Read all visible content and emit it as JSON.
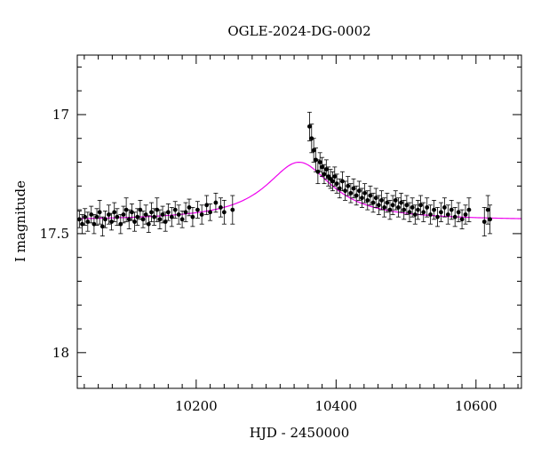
{
  "chart_data": {
    "type": "scatter",
    "title": "OGLE-2024-DG-0002",
    "xlabel": "HJD - 2450000",
    "ylabel": "I magnitude",
    "xlim": [
      10030,
      10665
    ],
    "ylim": [
      18.15,
      16.75
    ],
    "y_inverted": true,
    "x_major_ticks": [
      10200,
      10400,
      10600
    ],
    "x_minor_step": 20,
    "y_major_ticks": [
      17,
      17.5,
      18
    ],
    "y_minor_step": 0.1,
    "x_tick_labels": [
      "10200",
      "10400",
      "10600"
    ],
    "y_tick_labels": [
      "17",
      "17.5",
      "18"
    ],
    "point_color": "#000000",
    "model_color": "#ee00ee",
    "model": {
      "baseline": 17.445,
      "peak_x": 10347,
      "amplitude": 0.245,
      "width": 58
    },
    "points": [
      {
        "x": 10033,
        "y": 17.44,
        "err": 0.035
      },
      {
        "x": 10037,
        "y": 17.46,
        "err": 0.04
      },
      {
        "x": 10041,
        "y": 17.43,
        "err": 0.035
      },
      {
        "x": 10045,
        "y": 17.45,
        "err": 0.04
      },
      {
        "x": 10050,
        "y": 17.42,
        "err": 0.035
      },
      {
        "x": 10054,
        "y": 17.46,
        "err": 0.04
      },
      {
        "x": 10058,
        "y": 17.43,
        "err": 0.035
      },
      {
        "x": 10062,
        "y": 17.41,
        "err": 0.05
      },
      {
        "x": 10066,
        "y": 17.47,
        "err": 0.04
      },
      {
        "x": 10070,
        "y": 17.44,
        "err": 0.035
      },
      {
        "x": 10075,
        "y": 17.42,
        "err": 0.04
      },
      {
        "x": 10079,
        "y": 17.45,
        "err": 0.035
      },
      {
        "x": 10083,
        "y": 17.41,
        "err": 0.04
      },
      {
        "x": 10087,
        "y": 17.43,
        "err": 0.035
      },
      {
        "x": 10092,
        "y": 17.46,
        "err": 0.04
      },
      {
        "x": 10096,
        "y": 17.42,
        "err": 0.035
      },
      {
        "x": 10100,
        "y": 17.4,
        "err": 0.05
      },
      {
        "x": 10104,
        "y": 17.44,
        "err": 0.04
      },
      {
        "x": 10108,
        "y": 17.41,
        "err": 0.035
      },
      {
        "x": 10112,
        "y": 17.45,
        "err": 0.04
      },
      {
        "x": 10116,
        "y": 17.43,
        "err": 0.035
      },
      {
        "x": 10120,
        "y": 17.4,
        "err": 0.04
      },
      {
        "x": 10124,
        "y": 17.44,
        "err": 0.035
      },
      {
        "x": 10128,
        "y": 17.42,
        "err": 0.04
      },
      {
        "x": 10132,
        "y": 17.46,
        "err": 0.035
      },
      {
        "x": 10136,
        "y": 17.41,
        "err": 0.04
      },
      {
        "x": 10140,
        "y": 17.43,
        "err": 0.035
      },
      {
        "x": 10144,
        "y": 17.4,
        "err": 0.05
      },
      {
        "x": 10148,
        "y": 17.44,
        "err": 0.04
      },
      {
        "x": 10152,
        "y": 17.42,
        "err": 0.035
      },
      {
        "x": 10156,
        "y": 17.45,
        "err": 0.04
      },
      {
        "x": 10160,
        "y": 17.41,
        "err": 0.035
      },
      {
        "x": 10165,
        "y": 17.43,
        "err": 0.04
      },
      {
        "x": 10170,
        "y": 17.4,
        "err": 0.035
      },
      {
        "x": 10175,
        "y": 17.42,
        "err": 0.04
      },
      {
        "x": 10180,
        "y": 17.44,
        "err": 0.035
      },
      {
        "x": 10185,
        "y": 17.41,
        "err": 0.04
      },
      {
        "x": 10190,
        "y": 17.39,
        "err": 0.035
      },
      {
        "x": 10195,
        "y": 17.43,
        "err": 0.04
      },
      {
        "x": 10202,
        "y": 17.4,
        "err": 0.035
      },
      {
        "x": 10208,
        "y": 17.42,
        "err": 0.04
      },
      {
        "x": 10215,
        "y": 17.38,
        "err": 0.04
      },
      {
        "x": 10220,
        "y": 17.41,
        "err": 0.035
      },
      {
        "x": 10228,
        "y": 17.37,
        "err": 0.04
      },
      {
        "x": 10235,
        "y": 17.39,
        "err": 0.04
      },
      {
        "x": 10240,
        "y": 17.41,
        "err": 0.05
      },
      {
        "x": 10252,
        "y": 17.4,
        "err": 0.06
      },
      {
        "x": 10362,
        "y": 17.05,
        "err": 0.06
      },
      {
        "x": 10365,
        "y": 17.1,
        "err": 0.06
      },
      {
        "x": 10368,
        "y": 17.15,
        "err": 0.05
      },
      {
        "x": 10371,
        "y": 17.19,
        "err": 0.05
      },
      {
        "x": 10374,
        "y": 17.24,
        "err": 0.05
      },
      {
        "x": 10377,
        "y": 17.2,
        "err": 0.04
      },
      {
        "x": 10380,
        "y": 17.22,
        "err": 0.04
      },
      {
        "x": 10383,
        "y": 17.25,
        "err": 0.04
      },
      {
        "x": 10386,
        "y": 17.23,
        "err": 0.04
      },
      {
        "x": 10389,
        "y": 17.26,
        "err": 0.04
      },
      {
        "x": 10392,
        "y": 17.27,
        "err": 0.04
      },
      {
        "x": 10395,
        "y": 17.28,
        "err": 0.04
      },
      {
        "x": 10398,
        "y": 17.26,
        "err": 0.04
      },
      {
        "x": 10401,
        "y": 17.29,
        "err": 0.04
      },
      {
        "x": 10405,
        "y": 17.31,
        "err": 0.04
      },
      {
        "x": 10409,
        "y": 17.28,
        "err": 0.04
      },
      {
        "x": 10413,
        "y": 17.32,
        "err": 0.04
      },
      {
        "x": 10417,
        "y": 17.3,
        "err": 0.04
      },
      {
        "x": 10421,
        "y": 17.33,
        "err": 0.04
      },
      {
        "x": 10425,
        "y": 17.31,
        "err": 0.04
      },
      {
        "x": 10429,
        "y": 17.34,
        "err": 0.04
      },
      {
        "x": 10433,
        "y": 17.32,
        "err": 0.04
      },
      {
        "x": 10437,
        "y": 17.35,
        "err": 0.04
      },
      {
        "x": 10441,
        "y": 17.33,
        "err": 0.04
      },
      {
        "x": 10445,
        "y": 17.36,
        "err": 0.04
      },
      {
        "x": 10449,
        "y": 17.34,
        "err": 0.04
      },
      {
        "x": 10453,
        "y": 17.37,
        "err": 0.04
      },
      {
        "x": 10457,
        "y": 17.35,
        "err": 0.04
      },
      {
        "x": 10461,
        "y": 17.38,
        "err": 0.04
      },
      {
        "x": 10465,
        "y": 17.36,
        "err": 0.04
      },
      {
        "x": 10469,
        "y": 17.39,
        "err": 0.04
      },
      {
        "x": 10473,
        "y": 17.37,
        "err": 0.04
      },
      {
        "x": 10477,
        "y": 17.4,
        "err": 0.04
      },
      {
        "x": 10481,
        "y": 17.38,
        "err": 0.04
      },
      {
        "x": 10485,
        "y": 17.36,
        "err": 0.04
      },
      {
        "x": 10489,
        "y": 17.39,
        "err": 0.04
      },
      {
        "x": 10493,
        "y": 17.37,
        "err": 0.04
      },
      {
        "x": 10497,
        "y": 17.4,
        "err": 0.04
      },
      {
        "x": 10501,
        "y": 17.38,
        "err": 0.04
      },
      {
        "x": 10505,
        "y": 17.41,
        "err": 0.04
      },
      {
        "x": 10509,
        "y": 17.39,
        "err": 0.04
      },
      {
        "x": 10513,
        "y": 17.42,
        "err": 0.04
      },
      {
        "x": 10517,
        "y": 17.4,
        "err": 0.04
      },
      {
        "x": 10521,
        "y": 17.38,
        "err": 0.04
      },
      {
        "x": 10525,
        "y": 17.41,
        "err": 0.04
      },
      {
        "x": 10530,
        "y": 17.39,
        "err": 0.04
      },
      {
        "x": 10535,
        "y": 17.42,
        "err": 0.04
      },
      {
        "x": 10540,
        "y": 17.4,
        "err": 0.04
      },
      {
        "x": 10545,
        "y": 17.43,
        "err": 0.04
      },
      {
        "x": 10550,
        "y": 17.41,
        "err": 0.04
      },
      {
        "x": 10555,
        "y": 17.39,
        "err": 0.04
      },
      {
        "x": 10560,
        "y": 17.42,
        "err": 0.04
      },
      {
        "x": 10565,
        "y": 17.4,
        "err": 0.04
      },
      {
        "x": 10570,
        "y": 17.43,
        "err": 0.04
      },
      {
        "x": 10575,
        "y": 17.41,
        "err": 0.04
      },
      {
        "x": 10580,
        "y": 17.44,
        "err": 0.04
      },
      {
        "x": 10585,
        "y": 17.42,
        "err": 0.04
      },
      {
        "x": 10590,
        "y": 17.4,
        "err": 0.05
      },
      {
        "x": 10612,
        "y": 17.45,
        "err": 0.06
      },
      {
        "x": 10617,
        "y": 17.4,
        "err": 0.06
      },
      {
        "x": 10620,
        "y": 17.44,
        "err": 0.06
      }
    ]
  }
}
